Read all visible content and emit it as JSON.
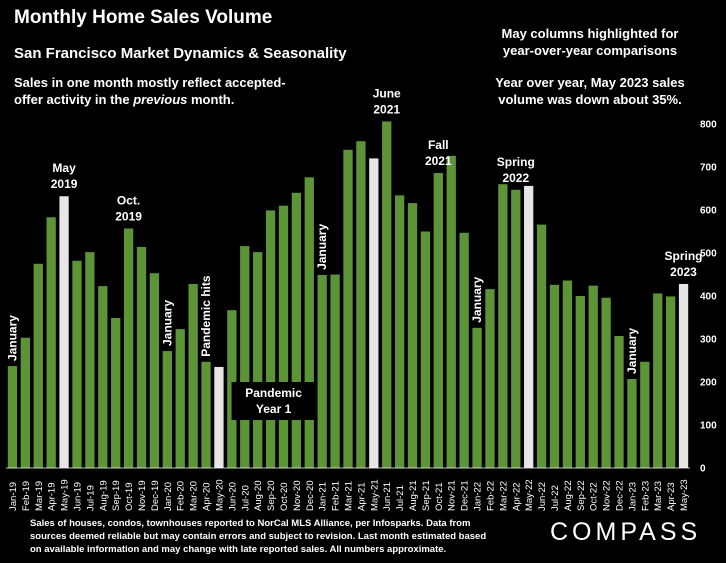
{
  "header": {
    "title": "Monthly Home Sales Volume",
    "subtitle": "San Francisco Market Dynamics & Seasonality",
    "note_left_line1": "Sales in one month mostly reflect accepted-",
    "note_left_line2_pre": "offer activity in the ",
    "note_left_line2_em": "previous",
    "note_left_line2_post": " month.",
    "note_right_line1": "May columns highlighted for",
    "note_right_line2": "year-over-year comparisons",
    "yoy_line1": "Year over year, May 2023 sales",
    "yoy_line2": "volume was down about 35%."
  },
  "footer": {
    "footnote": "Sales of houses, condos, townhouses reported to NorCal MLS Alliance, per Infosparks. Data from sources deemed reliable but may contain errors and subject to revision. Last month estimated based on available information and may change with late reported sales. All numbers approximate.",
    "logo": "COMPASS"
  },
  "chart_data": {
    "type": "bar",
    "categories": [
      "Jan-19",
      "Feb-19",
      "Mar-19",
      "Apr-19",
      "May-19",
      "Jun-19",
      "Jul-19",
      "Aug-19",
      "Sep-19",
      "Oct-19",
      "Nov-19",
      "Dec-19",
      "Jan-20",
      "Feb-20",
      "Mar-20",
      "Apr-20",
      "May-20",
      "Jun-20",
      "Jul-20",
      "Aug-20",
      "Sep-20",
      "Oct-20",
      "Nov-20",
      "Dec-20",
      "Jan-21",
      "Feb-21",
      "Mar-21",
      "Apr-21",
      "May-21",
      "Jun-21",
      "Jul-21",
      "Aug-21",
      "Sep-21",
      "Oct-21",
      "Nov-21",
      "Dec-21",
      "Jan-22",
      "Feb-22",
      "Mar-22",
      "Apr-22",
      "May-22",
      "Jun-22",
      "Jul-22",
      "Aug-22",
      "Sep-22",
      "Oct-22",
      "Nov-22",
      "Dec-22",
      "Jan-23",
      "Feb-23",
      "Mar-23",
      "Apr-23",
      "May-23"
    ],
    "values": [
      237,
      303,
      475,
      583,
      632,
      482,
      502,
      423,
      349,
      557,
      514,
      453,
      272,
      323,
      428,
      247,
      235,
      367,
      516,
      502,
      599,
      610,
      640,
      676,
      449,
      450,
      740,
      760,
      720,
      806,
      634,
      616,
      550,
      686,
      726,
      547,
      326,
      416,
      660,
      647,
      656,
      566,
      426,
      436,
      400,
      424,
      396,
      307,
      207,
      247,
      406,
      399,
      428
    ],
    "highlighted": [
      "May-19",
      "May-20",
      "May-21",
      "May-22",
      "May-23"
    ],
    "colors": {
      "bar": "#5E9438",
      "highlight": "#E6E6E6",
      "background": "#000000",
      "grid": "#FFFFFF"
    },
    "ylim": [
      0,
      800
    ],
    "yticks": [
      0,
      100,
      200,
      300,
      400,
      500,
      600,
      700,
      800
    ],
    "y_axis_side": "right",
    "grid": false,
    "annotations": [
      {
        "label": "January",
        "category": "Jan-19",
        "rotated": true
      },
      {
        "label": "May\n2019",
        "category": "May-19"
      },
      {
        "label": "Oct.\n2019",
        "category": "Oct-19"
      },
      {
        "label": "January",
        "category": "Jan-20",
        "rotated": true
      },
      {
        "label": "Pandemic hits",
        "category": "Apr-20",
        "rotated": true
      },
      {
        "label": "Pandemic\nYear 1",
        "category": "Sep-20",
        "boxed": true
      },
      {
        "label": "January",
        "category": "Jan-21",
        "rotated": true
      },
      {
        "label": "June\n2021",
        "category": "Jun-21"
      },
      {
        "label": "Fall\n2021",
        "category": "Oct-21"
      },
      {
        "label": "January",
        "category": "Jan-22",
        "rotated": true
      },
      {
        "label": "Spring\n2022",
        "category": "Apr-22"
      },
      {
        "label": "January",
        "category": "Jan-23",
        "rotated": true
      },
      {
        "label": "Spring\n2023",
        "category": "May-23"
      }
    ]
  }
}
